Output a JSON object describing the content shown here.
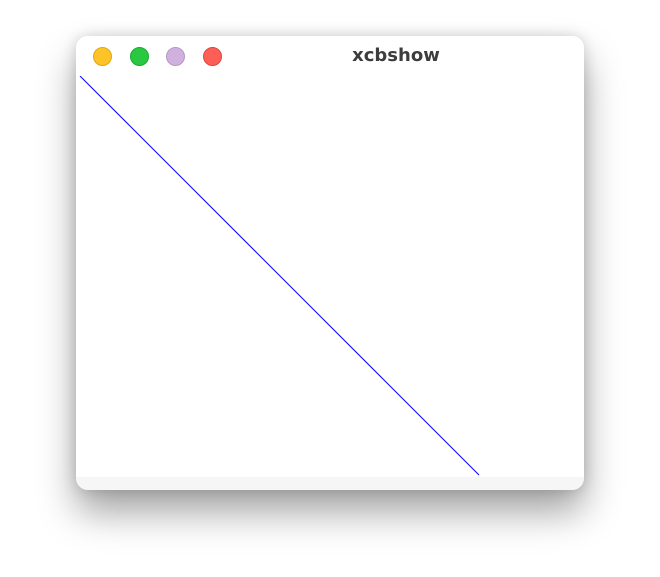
{
  "window": {
    "title": "xcbshow"
  },
  "traffic_lights": [
    {
      "name": "minimize",
      "color": "#fdc328",
      "border": "#dfa812"
    },
    {
      "name": "maximize",
      "color": "#28c840",
      "border": "#1ea932"
    },
    {
      "name": "extra",
      "color": "#d0b0dc",
      "border": "#b896c5"
    },
    {
      "name": "close",
      "color": "#fd5f57",
      "border": "#e0443e"
    }
  ],
  "canvas": {
    "background": "#ffffff",
    "line_color": "#0000ff"
  },
  "statusbar": {
    "background": "#f6f6f6"
  }
}
